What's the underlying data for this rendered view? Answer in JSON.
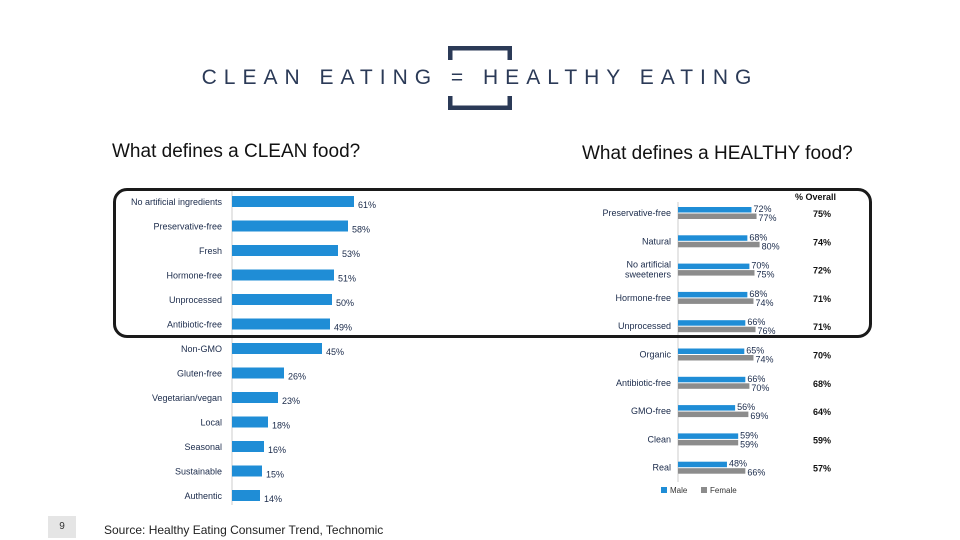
{
  "slide": {
    "title": "CLEAN EATING = HEALTHY EATING",
    "page_number": "9",
    "source": "Source: Healthy Eating Consumer Trend, Technomic"
  },
  "colors": {
    "male": "#1f8dd6",
    "female": "#8c8c8c",
    "bracket": "#2b3a57"
  },
  "chart_data": [
    {
      "type": "bar",
      "orientation": "horizontal",
      "title": "What defines a CLEAN food?",
      "categories": [
        "No artificial ingredients",
        "Preservative-free",
        "Fresh",
        "Hormone-free",
        "Unprocessed",
        "Antibiotic-free",
        "Non-GMO",
        "Gluten-free",
        "Vegetarian/vegan",
        "Local",
        "Seasonal",
        "Sustainable",
        "Authentic"
      ],
      "values": [
        61,
        58,
        53,
        51,
        50,
        49,
        45,
        26,
        23,
        18,
        16,
        15,
        14
      ],
      "value_labels": [
        "61%",
        "58%",
        "53%",
        "51%",
        "50%",
        "49%",
        "45%",
        "26%",
        "23%",
        "18%",
        "16%",
        "15%",
        "14%"
      ],
      "xlim": [
        0,
        100
      ]
    },
    {
      "type": "bar",
      "orientation": "horizontal",
      "title": "What defines a HEALTHY food?",
      "categories": [
        "Preservative-free",
        "Natural",
        "No artificial sweeteners",
        "Hormone-free",
        "Unprocessed",
        "Organic",
        "Antibiotic-free",
        "GMO-free",
        "Clean",
        "Real"
      ],
      "category_lines": [
        [
          "Preservative-free"
        ],
        [
          "Natural"
        ],
        [
          "No artificial",
          "sweeteners"
        ],
        [
          "Hormone-free"
        ],
        [
          "Unprocessed"
        ],
        [
          "Organic"
        ],
        [
          "Antibiotic-free"
        ],
        [
          "GMO-free"
        ],
        [
          "Clean"
        ],
        [
          "Real"
        ]
      ],
      "series": [
        {
          "name": "Male",
          "values": [
            72,
            68,
            70,
            68,
            66,
            65,
            66,
            56,
            59,
            48
          ],
          "labels": [
            "72%",
            "68%",
            "70%",
            "68%",
            "66%",
            "65%",
            "66%",
            "56%",
            "59%",
            "48%"
          ]
        },
        {
          "name": "Female",
          "values": [
            77,
            80,
            75,
            74,
            76,
            74,
            70,
            69,
            59,
            66
          ],
          "labels": [
            "77%",
            "80%",
            "75%",
            "74%",
            "76%",
            "74%",
            "70%",
            "69%",
            "59%",
            "66%"
          ]
        }
      ],
      "overall_header": "% Overall",
      "overall": [
        "75%",
        "74%",
        "72%",
        "71%",
        "71%",
        "70%",
        "68%",
        "64%",
        "59%",
        "57%"
      ],
      "legend": [
        "Male",
        "Female"
      ],
      "legend_position": "bottom",
      "xlim": [
        0,
        100
      ]
    }
  ]
}
